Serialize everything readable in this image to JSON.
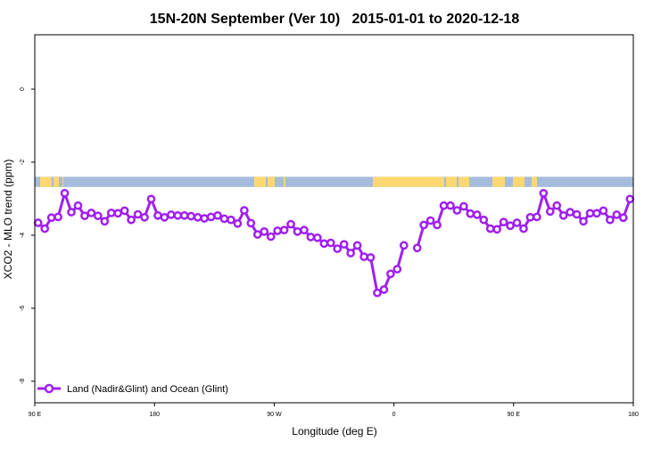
{
  "chart_data": {
    "type": "line",
    "title": "15N-20N September (Ver 10)   2015-01-01 to 2020-12-18",
    "xlabel": "Longitude (deg E)",
    "ylabel": "XCO2 - MLO trend (ppm)",
    "xtick_labels": [
      "90 E",
      "180",
      "90 W",
      "0",
      "90 E",
      "180"
    ],
    "yticks": [
      0,
      -2,
      -4,
      -6,
      -8
    ],
    "ylim": [
      -8.59,
      1.49
    ],
    "grid": false,
    "legend_position": "bottom-left",
    "map_strip_colors": {
      "ocean": "#a5bcdb",
      "land": "#fdd872"
    },
    "series": [
      {
        "name": "Land (Nadir&Glint) and Ocean (Glint)",
        "color": "#a020f0",
        "x": [
          92.5,
          97.5,
          102.5,
          107.5,
          112.5,
          117.5,
          122.5,
          127.5,
          132.5,
          137.5,
          142.5,
          147.5,
          152.5,
          157.5,
          162.5,
          167.5,
          172.5,
          177.5,
          -177.5,
          -172.5,
          -167.5,
          -162.5,
          -157.5,
          -152.5,
          -147.5,
          -142.5,
          -137.5,
          -132.5,
          -127.5,
          -122.5,
          -117.5,
          -112.5,
          -107.5,
          -102.5,
          -97.5,
          -92.5,
          -87.5,
          -82.5,
          -77.5,
          -72.5,
          -67.5,
          -62.5,
          -57.5,
          -52.5,
          -47.5,
          -42.5,
          -37.5,
          -32.5,
          -27.5,
          -22.5,
          -17.5,
          -12.5,
          -7.5,
          -2.5,
          2.5,
          7.5,
          12.5,
          17.5,
          22.5,
          27.5,
          32.5,
          37.5,
          42.5,
          47.5,
          52.5,
          57.5,
          62.5,
          67.5,
          72.5,
          77.5,
          82.5,
          87.5,
          92.5,
          97.5,
          102.5,
          107.5,
          112.5,
          117.5,
          122.5,
          127.5,
          132.5,
          137.5,
          142.5,
          147.5,
          152.5,
          157.5,
          162.5,
          167.5,
          172.5,
          177.5
        ],
        "y": [
          -3.66,
          -3.82,
          -3.52,
          -3.5,
          -2.85,
          -3.37,
          -3.19,
          -3.47,
          -3.39,
          -3.47,
          -3.62,
          -3.39,
          -3.4,
          -3.33,
          -3.58,
          -3.43,
          -3.51,
          -3.01,
          -3.46,
          -3.51,
          -3.44,
          -3.46,
          -3.46,
          -3.48,
          -3.51,
          -3.54,
          -3.5,
          -3.46,
          -3.55,
          -3.58,
          -3.68,
          -3.32,
          -3.67,
          -3.98,
          -3.9,
          -4.04,
          -3.88,
          -3.86,
          -3.7,
          -3.9,
          -3.86,
          -4.05,
          -4.07,
          -4.23,
          -4.21,
          -4.37,
          -4.25,
          -4.49,
          -4.28,
          -4.59,
          -4.61,
          -5.58,
          -5.49,
          -5.06,
          -4.93,
          -4.28,
          null,
          -4.35,
          -3.72,
          -3.6,
          -3.72,
          -3.19,
          -3.19,
          -3.32,
          -3.21,
          -3.41,
          -3.44,
          -3.58,
          -3.82,
          -3.84,
          -3.64,
          -3.74,
          -3.66,
          -3.82,
          -3.51,
          -3.5,
          -2.85,
          -3.35,
          -3.19,
          -3.46,
          -3.37,
          -3.43,
          -3.62,
          -3.4,
          -3.4,
          -3.33,
          -3.58,
          -3.44,
          -3.52,
          -3.01
        ]
      }
    ]
  }
}
